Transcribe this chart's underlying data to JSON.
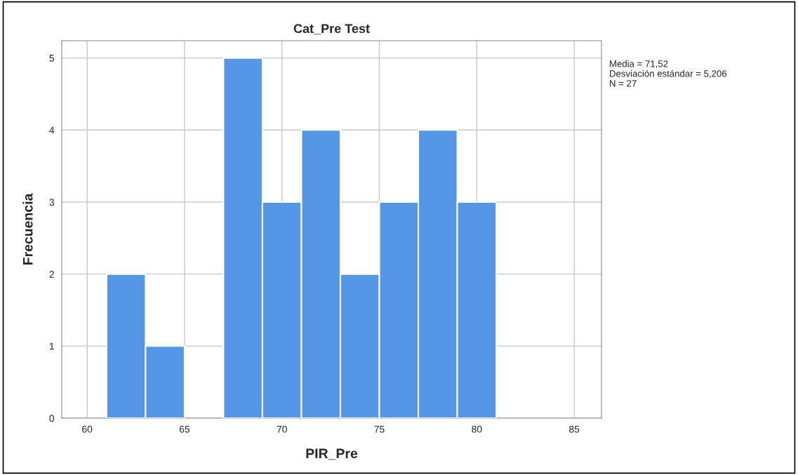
{
  "chart_data": {
    "type": "histogram",
    "title": "Cat_Pre Test",
    "xlabel": "PIR_Pre",
    "ylabel": "Frecuencia",
    "bins": [
      61,
      63,
      65,
      67,
      69,
      71,
      73,
      75,
      77,
      79,
      81
    ],
    "values": [
      2,
      1,
      0,
      5,
      3,
      4,
      2,
      3,
      4,
      3
    ],
    "color": "#5596e6",
    "xlim": [
      58.7,
      86.4
    ],
    "xticks": [
      60,
      65,
      70,
      75,
      80,
      85
    ],
    "ylim": [
      0,
      5.24
    ],
    "yticks": [
      0,
      1,
      2,
      3,
      4,
      5
    ],
    "grid": true,
    "legend": false,
    "annotations": [
      "Media = 71,52",
      "Desviación estándar = 5,206",
      "N = 27"
    ]
  }
}
